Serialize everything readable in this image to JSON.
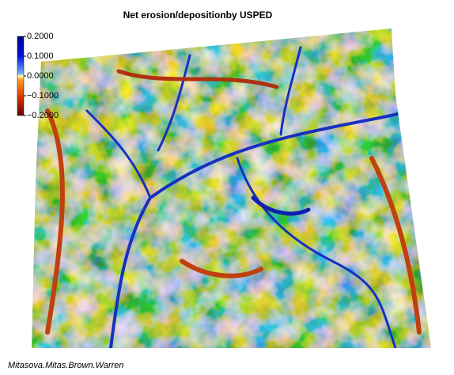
{
  "title": "Net erosion/depositionby USPED",
  "legend": {
    "ticks": [
      {
        "value": 0.2,
        "label": "0.2000"
      },
      {
        "value": 0.1,
        "label": "0.1000"
      },
      {
        "value": 0,
        "label": "0.0000"
      },
      {
        "value": -0.1,
        "label": "−0.1000"
      },
      {
        "value": -0.2,
        "label": "−0.2000"
      }
    ]
  },
  "credit": "Mitasova.Mitas.Brown.Warren"
}
